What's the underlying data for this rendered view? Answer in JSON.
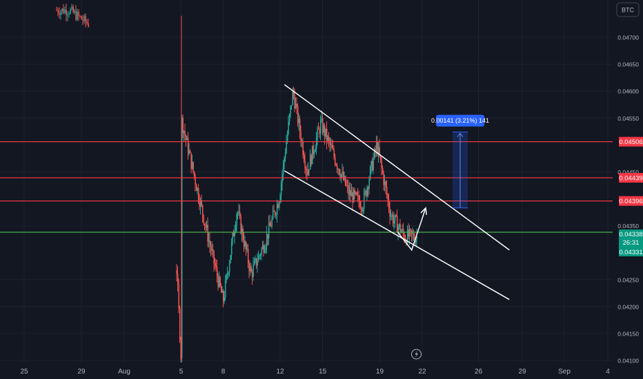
{
  "symbol_label": "BTC",
  "price_axis": {
    "ticks": [
      "0.04700",
      "0.04650",
      "0.04600",
      "0.04550",
      "0.04450",
      "0.04350",
      "0.04250",
      "0.04200",
      "0.04150",
      "0.04100"
    ]
  },
  "time_axis": {
    "ticks": [
      "25",
      "29",
      "Aug",
      "5",
      "8",
      "12",
      "15",
      "19",
      "22",
      "26",
      "29",
      "Sep",
      "4"
    ]
  },
  "horizontal_levels": [
    {
      "value": 0.04506,
      "label": "0.04506",
      "color": "#f23645"
    },
    {
      "value": 0.04439,
      "label": "0.04439",
      "color": "#f23645"
    },
    {
      "value": 0.04396,
      "label": "0.04396",
      "color": "#f23645"
    },
    {
      "value": 0.04338,
      "label": "0.04338",
      "color": "#4caf50"
    }
  ],
  "current_price": {
    "value": "0.04338",
    "countdown": "26:31",
    "color": "#089981"
  },
  "price_line_tag": {
    "value": "0.04331",
    "color": "#089981"
  },
  "measure_tool": {
    "label": "0.00141 (3.21%) 141",
    "color": "#2962ff"
  },
  "colors": {
    "background": "#131722",
    "up": "#26a69a",
    "down": "#ef5350",
    "grid": "#1e222d",
    "trendline": "#ffffff"
  },
  "chart_data": {
    "type": "candlestick",
    "title": "",
    "ylim": [
      0.041,
      0.0474
    ],
    "x_ticks": [
      "25",
      "29",
      "Aug",
      "5",
      "8",
      "12",
      "15",
      "19",
      "22",
      "26",
      "29",
      "Sep",
      "4"
    ],
    "y_ticks": [
      0.047,
      0.0465,
      0.046,
      0.0455,
      0.0445,
      0.0435,
      0.0425,
      0.042,
      0.0415,
      0.041
    ],
    "price_path": [
      {
        "day": "Jul 28",
        "price": 0.0475
      },
      {
        "day": "Aug 4",
        "price": 0.0462
      },
      {
        "day": "Aug 5",
        "price": 0.041
      },
      {
        "day": "Aug 5",
        "price": 0.0455
      },
      {
        "day": "Aug 7",
        "price": 0.0432
      },
      {
        "day": "Aug 8",
        "price": 0.0421
      },
      {
        "day": "Aug 9",
        "price": 0.0438
      },
      {
        "day": "Aug 10",
        "price": 0.0426
      },
      {
        "day": "Aug 11",
        "price": 0.0432
      },
      {
        "day": "Aug 12",
        "price": 0.044
      },
      {
        "day": "Aug 13",
        "price": 0.046
      },
      {
        "day": "Aug 14",
        "price": 0.0445
      },
      {
        "day": "Aug 15",
        "price": 0.0454
      },
      {
        "day": "Aug 17",
        "price": 0.0441
      },
      {
        "day": "Aug 18",
        "price": 0.0439
      },
      {
        "day": "Aug 19",
        "price": 0.045
      },
      {
        "day": "Aug 20",
        "price": 0.0437
      },
      {
        "day": "Aug 21",
        "price": 0.0433
      }
    ],
    "trendlines": [
      {
        "name": "upper channel",
        "from": {
          "day": "Aug 12",
          "price": 0.04612
        },
        "to": {
          "day": "Aug 28",
          "price": 0.04305
        }
      },
      {
        "name": "lower channel",
        "from": {
          "day": "Aug 12",
          "price": 0.04452
        },
        "to": {
          "day": "Aug 28",
          "price": 0.04213
        }
      }
    ],
    "projection": [
      {
        "day": "Aug 21",
        "price": 0.04338
      },
      {
        "day": "Aug 22",
        "price": 0.04305
      },
      {
        "day": "Aug 23",
        "price": 0.04383
      }
    ],
    "measure": {
      "from": 0.04383,
      "to": 0.04524,
      "change": 0.00141,
      "percent": 3.21,
      "ticks": 141
    }
  }
}
